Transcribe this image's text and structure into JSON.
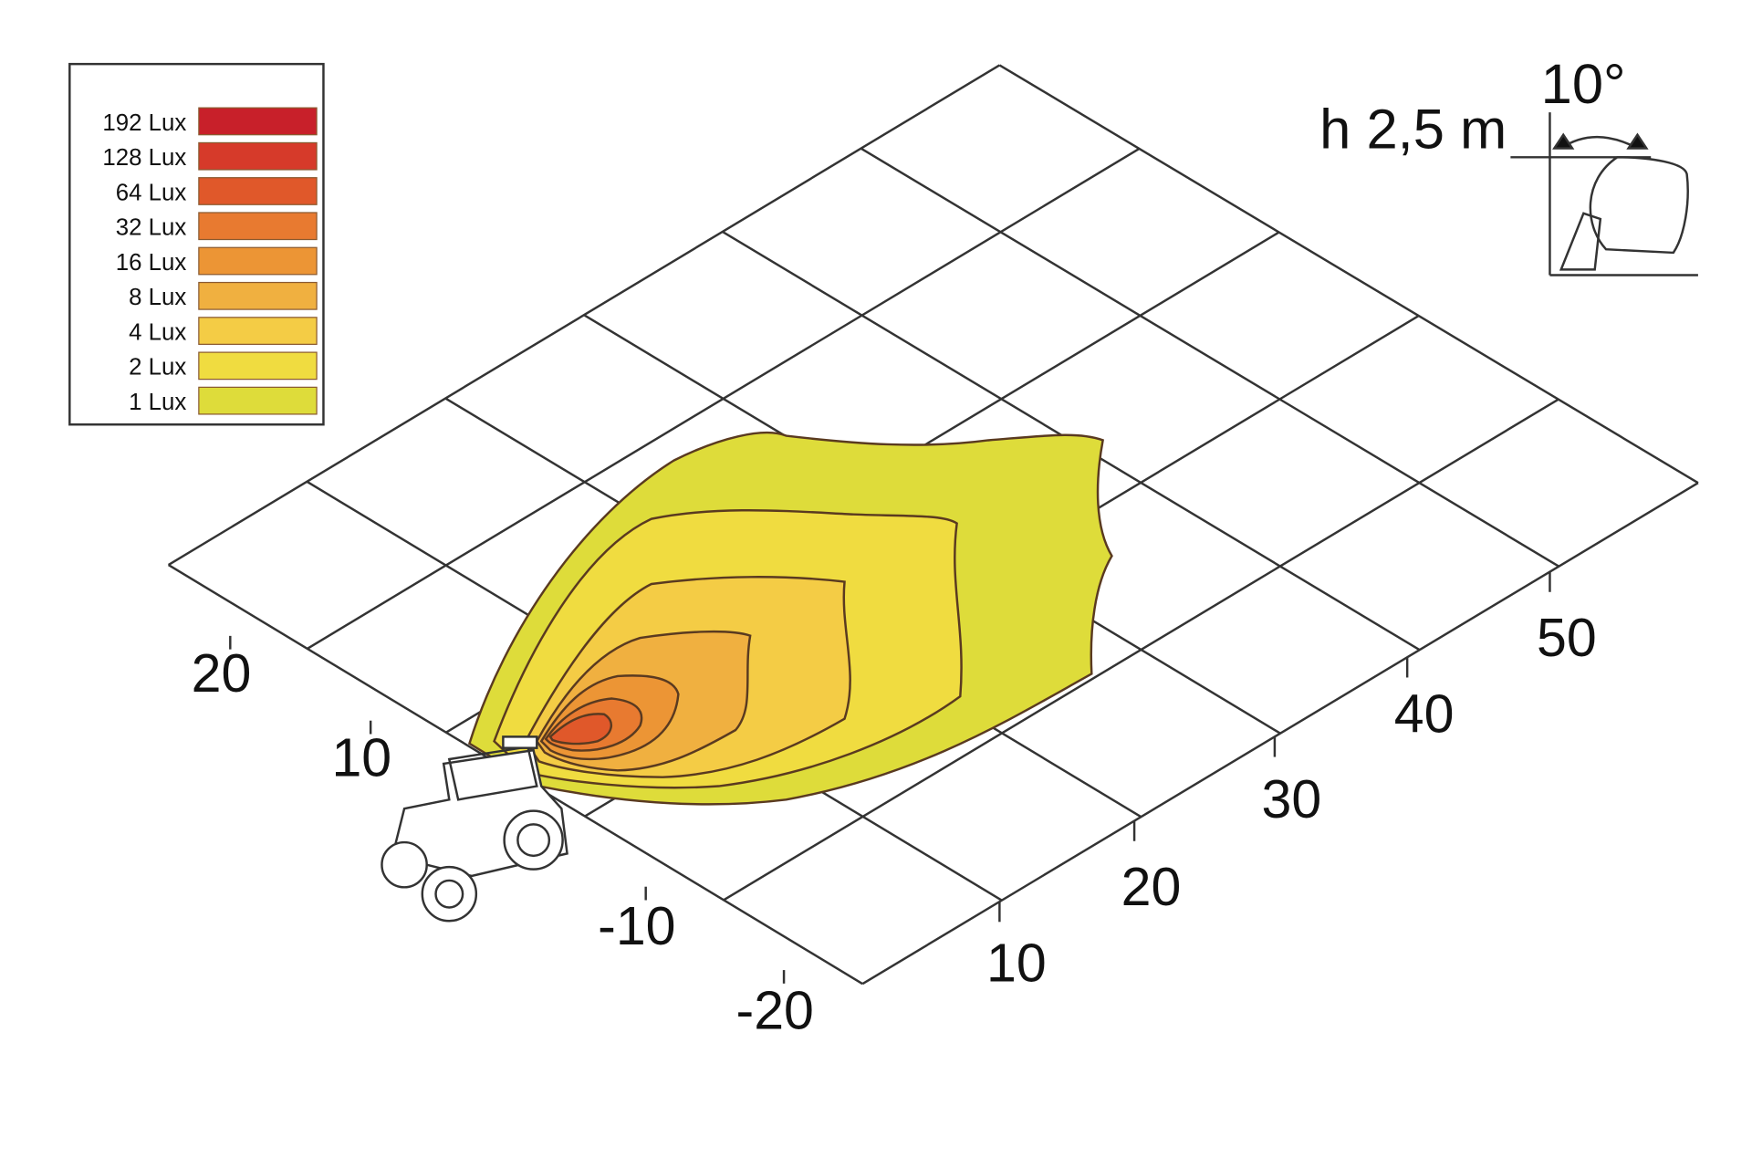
{
  "legend": {
    "items": [
      {
        "label": "192 Lux",
        "color": "#c8202a"
      },
      {
        "label": "128 Lux",
        "color": "#d63a2a"
      },
      {
        "label": "64 Lux",
        "color": "#e0582a"
      },
      {
        "label": "32 Lux",
        "color": "#e87a30"
      },
      {
        "label": "16 Lux",
        "color": "#ec9535"
      },
      {
        "label": "8 Lux",
        "color": "#f0b040"
      },
      {
        "label": "4 Lux",
        "color": "#f4cc45"
      },
      {
        "label": "2 Lux",
        "color": "#f0dc40"
      },
      {
        "label": "1 Lux",
        "color": "#dedc3a"
      }
    ]
  },
  "axes": {
    "left_ticks": [
      "20",
      "10",
      "-10",
      "-20"
    ],
    "right_ticks": [
      "10",
      "20",
      "30",
      "40",
      "50"
    ]
  },
  "mount": {
    "height_label": "h 2,5 m",
    "angle_label": "10°"
  }
}
